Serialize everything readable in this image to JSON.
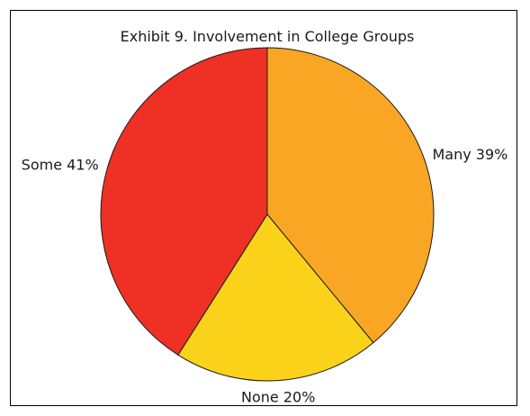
{
  "chart_data": {
    "type": "pie",
    "title": "Exhibit 9. Involvement in College Groups",
    "slices": [
      {
        "label": "Many",
        "value": 39,
        "display": "Many 39%",
        "color": "#F8A623"
      },
      {
        "label": "None",
        "value": 20,
        "display": "None 20%",
        "color": "#FBD21A"
      },
      {
        "label": "Some",
        "value": 41,
        "display": "Some 41%",
        "color": "#EE3124"
      }
    ],
    "start": "12 o'clock",
    "direction": "clockwise",
    "unit": "%"
  }
}
